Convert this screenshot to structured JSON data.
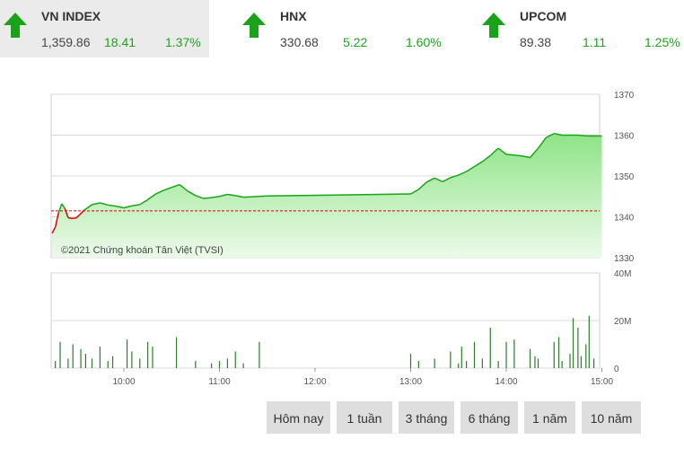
{
  "tickers": [
    {
      "name": "VN INDEX",
      "price": "1,359.86",
      "change": "18.41",
      "percent": "1.37%",
      "direction": "up",
      "active": true
    },
    {
      "name": "HNX",
      "price": "330.68",
      "change": "5.22",
      "percent": "1.60%",
      "direction": "up",
      "active": false
    },
    {
      "name": "UPCOM",
      "price": "89.38",
      "change": "1.11",
      "percent": "1.25%",
      "direction": "up",
      "active": false
    }
  ],
  "colors": {
    "up": "#1aa31a",
    "down": "#e00000",
    "area_top": "#8ee486",
    "area_bottom": "#ecfaea",
    "volume": "#2b7d2b"
  },
  "chart_data": [
    {
      "type": "area",
      "x_ticks": [
        "10:00",
        "11:00",
        "12:00",
        "13:00",
        "14:00",
        "15:00"
      ],
      "y_ticks": [
        "1330",
        "1340",
        "1350",
        "1360",
        "1370"
      ],
      "ylim": [
        1330,
        1370
      ],
      "xlim": [
        "09:15",
        "15:00"
      ],
      "reference_price": 1341.45,
      "watermark": "©2021 Chứng khoán Tân Việt (TVSI)",
      "series": [
        {
          "time": [
            "09:15",
            "09:17",
            "09:19",
            "09:21",
            "09:23",
            "09:25",
            "09:27",
            "09:30",
            "09:32",
            "09:35",
            "09:40",
            "09:45",
            "09:50",
            "09:55",
            "10:00",
            "10:05",
            "10:10",
            "10:15",
            "10:20",
            "10:25",
            "10:30",
            "10:35",
            "10:40",
            "10:45",
            "10:50",
            "10:55",
            "11:00",
            "11:05",
            "11:10",
            "11:15",
            "11:20",
            "11:25",
            "11:30",
            "13:00",
            "13:05",
            "13:10",
            "13:15",
            "13:20",
            "13:25",
            "13:30",
            "13:35",
            "13:40",
            "13:45",
            "13:50",
            "13:55",
            "14:00",
            "14:05",
            "14:10",
            "14:15",
            "14:20",
            "14:25",
            "14:30",
            "14:35",
            "14:40",
            "14:45",
            "14:50",
            "14:55",
            "15:00"
          ],
          "values": [
            1336.0,
            1337.5,
            1341.0,
            1343.2,
            1342.0,
            1339.8,
            1339.6,
            1339.7,
            1340.4,
            1341.6,
            1343.0,
            1343.4,
            1342.9,
            1342.6,
            1342.2,
            1342.7,
            1343.0,
            1344.2,
            1345.6,
            1346.5,
            1347.2,
            1347.9,
            1346.3,
            1345.2,
            1344.5,
            1344.7,
            1345.0,
            1345.5,
            1345.2,
            1344.8,
            1344.9,
            1345.0,
            1345.1,
            1345.6,
            1346.7,
            1348.5,
            1349.5,
            1348.6,
            1349.6,
            1350.2,
            1351.1,
            1352.3,
            1353.5,
            1355.0,
            1356.8,
            1355.3,
            1355.1,
            1354.9,
            1354.5,
            1356.8,
            1359.4,
            1360.4,
            1360.0,
            1360.0,
            1360.0,
            1359.8,
            1359.8,
            1359.8
          ]
        }
      ]
    },
    {
      "type": "bar",
      "y_ticks": [
        "0",
        "20M",
        "40M"
      ],
      "ylim": [
        0,
        40
      ],
      "series": [
        {
          "time": [
            "09:17",
            "09:20",
            "09:25",
            "09:28",
            "09:33",
            "09:36",
            "09:40",
            "09:45",
            "09:50",
            "09:53",
            "10:02",
            "10:05",
            "10:10",
            "10:15",
            "10:18",
            "10:33",
            "10:45",
            "10:55",
            "11:00",
            "11:05",
            "11:10",
            "11:15",
            "11:25",
            "13:00",
            "13:05",
            "13:15",
            "13:25",
            "13:30",
            "13:32",
            "13:35",
            "13:40",
            "13:45",
            "13:50",
            "13:55",
            "14:00",
            "14:05",
            "14:15",
            "14:18",
            "14:20",
            "14:30",
            "14:33",
            "14:35",
            "14:40",
            "14:42",
            "14:45",
            "14:47",
            "14:50",
            "14:52",
            "14:55"
          ],
          "values": [
            3,
            11,
            4,
            10,
            8,
            6,
            4,
            9,
            3,
            5,
            12,
            7,
            4,
            11,
            9,
            13,
            3,
            2,
            3,
            4,
            7,
            2,
            11,
            6,
            3,
            4,
            7,
            2,
            9,
            3,
            11,
            4,
            17,
            3,
            11,
            12,
            8,
            5,
            4,
            11,
            13,
            3,
            6,
            21,
            17,
            5,
            10,
            22,
            4
          ]
        }
      ]
    }
  ],
  "range_buttons": [
    "Hôm nay",
    "1 tuần",
    "3 tháng",
    "6 tháng",
    "1 năm",
    "10 năm"
  ]
}
